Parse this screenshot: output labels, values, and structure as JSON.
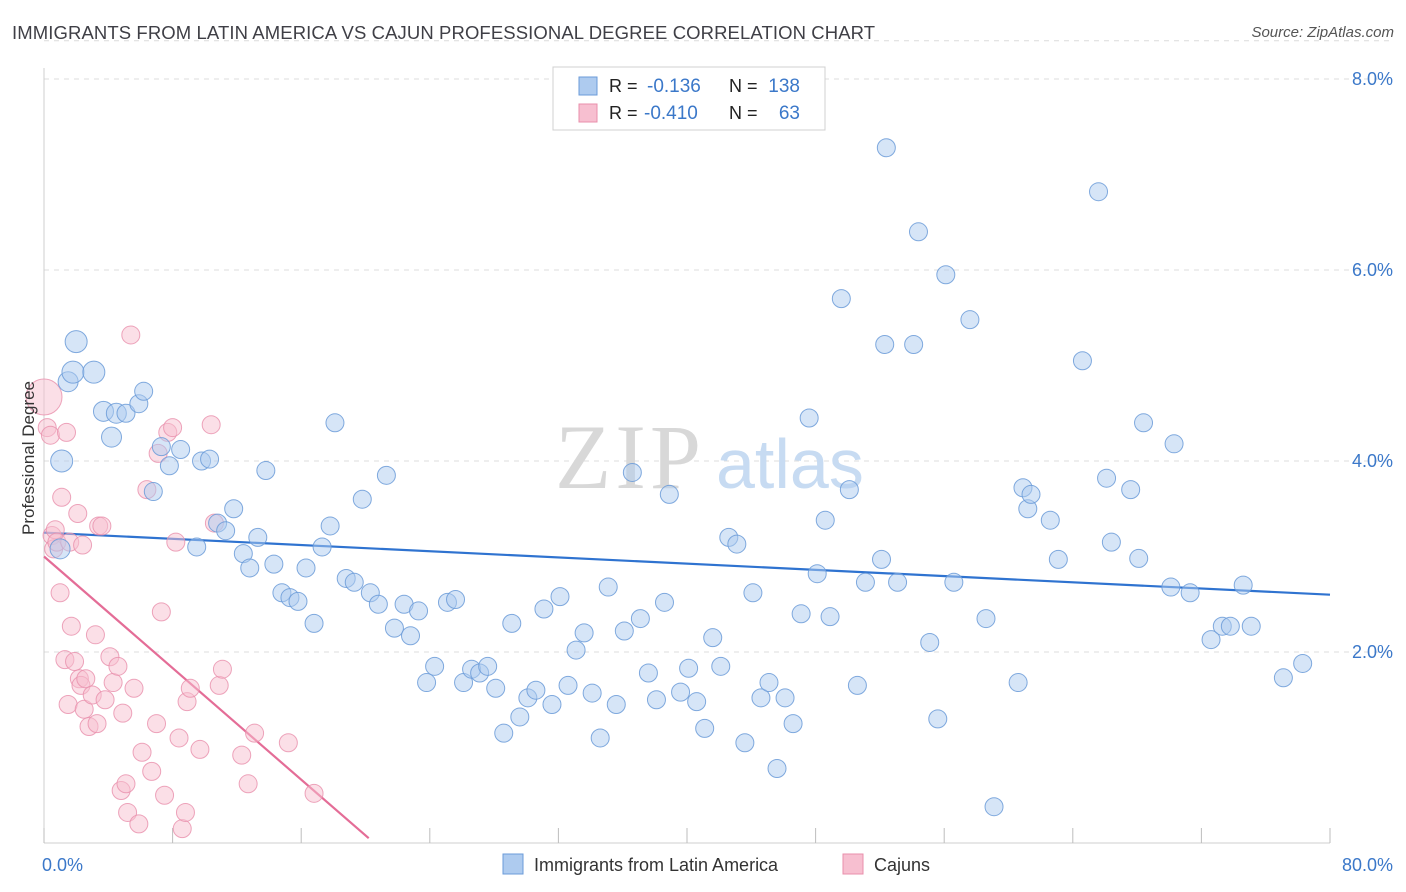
{
  "title": "IMMIGRANTS FROM LATIN AMERICA VS CAJUN PROFESSIONAL DEGREE CORRELATION CHART",
  "source": "Source: ZipAtlas.com",
  "watermark": {
    "zip": "ZIP",
    "atlas": "atlas"
  },
  "colors": {
    "blue_fill": "#aecbef",
    "blue_stroke": "#6b9bd8",
    "blue_line": "#2f73d0",
    "pink_fill": "#f7bfd0",
    "pink_stroke": "#e88fab",
    "pink_line": "#e46d97",
    "tick_text": "#3b78c9",
    "grid": "#dcdcdc",
    "axis_text": "#333333"
  },
  "legend_top": [
    {
      "r_label": "R =",
      "r_value": "-0.136",
      "n_label": "N =",
      "n_value": "138"
    },
    {
      "r_label": "R =",
      "r_value": "-0.410",
      "n_label": "N =",
      "n_value": "63"
    }
  ],
  "chart_data": {
    "type": "scatter",
    "title": "IMMIGRANTS FROM LATIN AMERICA VS CAJUN PROFESSIONAL DEGREE CORRELATION CHART",
    "xlabel": "",
    "ylabel": "Professional Degree",
    "xlim": [
      0,
      80
    ],
    "ylim": [
      0,
      8.4
    ],
    "x_tick_labels": [
      "0.0%",
      "80.0%"
    ],
    "y_ticks": [
      2,
      4,
      6,
      8
    ],
    "y_tick_labels": [
      "2.0%",
      "4.0%",
      "6.0%",
      "8.0%"
    ],
    "grid": true,
    "legend_position": "bottom-center",
    "series": [
      {
        "name": "Immigrants from Latin America",
        "color": "#aecbef",
        "trend": {
          "x": [
            0,
            80
          ],
          "y": [
            3.25,
            2.6
          ]
        },
        "points": [
          [
            1.0,
            3.08
          ],
          [
            1.1,
            4.0
          ],
          [
            1.5,
            4.83
          ],
          [
            1.8,
            4.93
          ],
          [
            2.0,
            5.25
          ],
          [
            3.1,
            4.93
          ],
          [
            3.7,
            4.52
          ],
          [
            4.2,
            4.25
          ],
          [
            4.5,
            4.5
          ],
          [
            5.1,
            4.5
          ],
          [
            5.9,
            4.6
          ],
          [
            6.2,
            4.73
          ],
          [
            6.8,
            3.68
          ],
          [
            7.3,
            4.15
          ],
          [
            7.8,
            3.95
          ],
          [
            8.5,
            4.12
          ],
          [
            9.5,
            3.1
          ],
          [
            9.8,
            4.0
          ],
          [
            10.3,
            4.02
          ],
          [
            10.8,
            3.35
          ],
          [
            11.3,
            3.27
          ],
          [
            11.8,
            3.5
          ],
          [
            12.4,
            3.03
          ],
          [
            12.8,
            2.88
          ],
          [
            13.3,
            3.2
          ],
          [
            13.8,
            3.9
          ],
          [
            14.3,
            2.92
          ],
          [
            14.8,
            2.62
          ],
          [
            15.3,
            2.57
          ],
          [
            15.8,
            2.53
          ],
          [
            16.3,
            2.88
          ],
          [
            16.8,
            2.3
          ],
          [
            17.3,
            3.1
          ],
          [
            17.8,
            3.32
          ],
          [
            18.1,
            4.4
          ],
          [
            18.8,
            2.77
          ],
          [
            19.3,
            2.73
          ],
          [
            19.8,
            3.6
          ],
          [
            20.3,
            2.62
          ],
          [
            20.8,
            2.5
          ],
          [
            21.3,
            3.85
          ],
          [
            21.8,
            2.25
          ],
          [
            22.4,
            2.5
          ],
          [
            22.8,
            2.17
          ],
          [
            23.3,
            2.43
          ],
          [
            23.8,
            1.68
          ],
          [
            24.3,
            1.85
          ],
          [
            25.1,
            2.52
          ],
          [
            25.6,
            2.55
          ],
          [
            26.1,
            1.68
          ],
          [
            26.6,
            1.82
          ],
          [
            27.1,
            1.78
          ],
          [
            27.6,
            1.85
          ],
          [
            28.1,
            1.62
          ],
          [
            28.6,
            1.15
          ],
          [
            29.1,
            2.3
          ],
          [
            29.6,
            1.32
          ],
          [
            30.1,
            1.52
          ],
          [
            30.6,
            1.6
          ],
          [
            31.1,
            2.45
          ],
          [
            31.6,
            1.45
          ],
          [
            32.1,
            2.58
          ],
          [
            32.6,
            1.65
          ],
          [
            33.1,
            2.02
          ],
          [
            33.6,
            2.2
          ],
          [
            34.1,
            1.57
          ],
          [
            34.6,
            1.1
          ],
          [
            35.1,
            2.68
          ],
          [
            35.6,
            1.45
          ],
          [
            36.1,
            2.22
          ],
          [
            36.6,
            3.88
          ],
          [
            37.1,
            2.35
          ],
          [
            37.6,
            1.78
          ],
          [
            38.1,
            1.5
          ],
          [
            38.6,
            2.52
          ],
          [
            38.9,
            3.65
          ],
          [
            39.6,
            1.58
          ],
          [
            40.1,
            1.83
          ],
          [
            40.6,
            1.48
          ],
          [
            41.1,
            1.2
          ],
          [
            41.6,
            2.15
          ],
          [
            42.1,
            1.85
          ],
          [
            42.6,
            3.2
          ],
          [
            43.1,
            3.13
          ],
          [
            43.6,
            1.05
          ],
          [
            44.1,
            2.62
          ],
          [
            44.6,
            1.52
          ],
          [
            45.1,
            1.68
          ],
          [
            45.6,
            0.78
          ],
          [
            46.1,
            1.52
          ],
          [
            46.6,
            1.25
          ],
          [
            47.1,
            2.4
          ],
          [
            47.6,
            4.45
          ],
          [
            48.1,
            2.82
          ],
          [
            48.6,
            3.38
          ],
          [
            48.9,
            2.37
          ],
          [
            49.6,
            5.7
          ],
          [
            50.1,
            3.7
          ],
          [
            50.6,
            1.65
          ],
          [
            51.1,
            2.73
          ],
          [
            52.1,
            2.97
          ],
          [
            52.3,
            5.22
          ],
          [
            52.4,
            7.28
          ],
          [
            53.1,
            2.73
          ],
          [
            54.1,
            5.22
          ],
          [
            54.4,
            6.4
          ],
          [
            55.1,
            2.1
          ],
          [
            55.6,
            1.3
          ],
          [
            56.1,
            5.95
          ],
          [
            56.6,
            2.73
          ],
          [
            57.6,
            5.48
          ],
          [
            58.6,
            2.35
          ],
          [
            59.1,
            0.38
          ],
          [
            60.6,
            1.68
          ],
          [
            60.9,
            3.72
          ],
          [
            61.2,
            3.5
          ],
          [
            61.4,
            3.65
          ],
          [
            62.6,
            3.38
          ],
          [
            63.1,
            2.97
          ],
          [
            64.6,
            5.05
          ],
          [
            65.6,
            6.82
          ],
          [
            66.1,
            3.82
          ],
          [
            66.4,
            3.15
          ],
          [
            67.6,
            3.7
          ],
          [
            68.1,
            2.98
          ],
          [
            68.4,
            4.4
          ],
          [
            70.1,
            2.68
          ],
          [
            70.3,
            4.18
          ],
          [
            71.3,
            2.62
          ],
          [
            72.6,
            2.13
          ],
          [
            73.3,
            2.27
          ],
          [
            73.8,
            2.27
          ],
          [
            74.6,
            2.7
          ],
          [
            75.1,
            2.27
          ],
          [
            77.1,
            1.73
          ],
          [
            78.3,
            1.88
          ]
        ],
        "radius": [
          10,
          11,
          10,
          11,
          11,
          11,
          10,
          10,
          10,
          9,
          9,
          9,
          9,
          9,
          9,
          9,
          9,
          9,
          9,
          9,
          9,
          9,
          9,
          9,
          9,
          9,
          9,
          9,
          9,
          9,
          9,
          9,
          9,
          9,
          9,
          9,
          9,
          9,
          9,
          9,
          9,
          9,
          9,
          9,
          9,
          9,
          9,
          9,
          9,
          9,
          9,
          9,
          9,
          9,
          9,
          9,
          9,
          9,
          9,
          9,
          9,
          9,
          9,
          9,
          9,
          9,
          9,
          9,
          9,
          9,
          9,
          9,
          9,
          9,
          9,
          9,
          9,
          9,
          9,
          9,
          9,
          9,
          9,
          9,
          9,
          9,
          9,
          9,
          9,
          9,
          9,
          9,
          9,
          9,
          9,
          9,
          9,
          9,
          9,
          9,
          9,
          9,
          9,
          9,
          9,
          9,
          9,
          9,
          9,
          9,
          9,
          9,
          9,
          9,
          9,
          9,
          9,
          9,
          9,
          9,
          9,
          9,
          9,
          9,
          9,
          9,
          9,
          9,
          9,
          9,
          9,
          9,
          9,
          9,
          9,
          9,
          9,
          9
        ]
      },
      {
        "name": "Cajuns",
        "color": "#f7bfd0",
        "trend": {
          "x": [
            0,
            20.2
          ],
          "y": [
            3.0,
            0.05
          ]
        },
        "points": [
          [
            0.0,
            4.67
          ],
          [
            0.2,
            4.35
          ],
          [
            0.4,
            4.27
          ],
          [
            0.5,
            3.22
          ],
          [
            0.6,
            3.08
          ],
          [
            0.7,
            3.28
          ],
          [
            0.8,
            3.15
          ],
          [
            1.0,
            2.62
          ],
          [
            1.1,
            3.62
          ],
          [
            1.3,
            1.92
          ],
          [
            1.4,
            4.3
          ],
          [
            1.5,
            1.45
          ],
          [
            1.6,
            3.15
          ],
          [
            1.7,
            2.27
          ],
          [
            1.9,
            1.9
          ],
          [
            2.1,
            3.45
          ],
          [
            2.2,
            1.72
          ],
          [
            2.3,
            1.65
          ],
          [
            2.4,
            3.12
          ],
          [
            2.5,
            1.4
          ],
          [
            2.6,
            1.72
          ],
          [
            2.8,
            1.22
          ],
          [
            3.0,
            1.55
          ],
          [
            3.2,
            2.18
          ],
          [
            3.3,
            1.25
          ],
          [
            3.4,
            3.32
          ],
          [
            3.6,
            3.32
          ],
          [
            3.8,
            1.5
          ],
          [
            4.1,
            1.95
          ],
          [
            4.3,
            1.68
          ],
          [
            4.6,
            1.85
          ],
          [
            4.8,
            0.55
          ],
          [
            4.9,
            1.36
          ],
          [
            5.1,
            0.62
          ],
          [
            5.2,
            0.32
          ],
          [
            5.4,
            5.32
          ],
          [
            5.6,
            1.62
          ],
          [
            5.9,
            0.2
          ],
          [
            6.1,
            0.95
          ],
          [
            6.4,
            3.7
          ],
          [
            6.7,
            0.75
          ],
          [
            7.0,
            1.25
          ],
          [
            7.1,
            4.08
          ],
          [
            7.3,
            2.42
          ],
          [
            7.5,
            0.5
          ],
          [
            7.7,
            4.3
          ],
          [
            8.0,
            4.35
          ],
          [
            8.2,
            3.15
          ],
          [
            8.4,
            1.1
          ],
          [
            8.6,
            0.15
          ],
          [
            8.8,
            0.32
          ],
          [
            8.9,
            1.48
          ],
          [
            9.1,
            1.62
          ],
          [
            9.7,
            0.98
          ],
          [
            10.4,
            4.38
          ],
          [
            10.6,
            3.35
          ],
          [
            10.9,
            1.65
          ],
          [
            11.1,
            1.82
          ],
          [
            12.3,
            0.92
          ],
          [
            12.7,
            0.62
          ],
          [
            13.1,
            1.15
          ],
          [
            15.2,
            1.05
          ],
          [
            16.8,
            0.52
          ]
        ],
        "radius": [
          18,
          9,
          9,
          9,
          9,
          9,
          9,
          9,
          9,
          9,
          9,
          9,
          9,
          9,
          9,
          9,
          9,
          9,
          9,
          9,
          9,
          9,
          9,
          9,
          9,
          9,
          9,
          9,
          9,
          9,
          9,
          9,
          9,
          9,
          9,
          9,
          9,
          9,
          9,
          9,
          9,
          9,
          9,
          9,
          9,
          9,
          9,
          9,
          9,
          9,
          9,
          9,
          9,
          9,
          9,
          9,
          9,
          9,
          9,
          9,
          9,
          9,
          9
        ]
      }
    ]
  },
  "legend_bottom": [
    {
      "label": "Immigrants from Latin America"
    },
    {
      "label": "Cajuns"
    }
  ]
}
